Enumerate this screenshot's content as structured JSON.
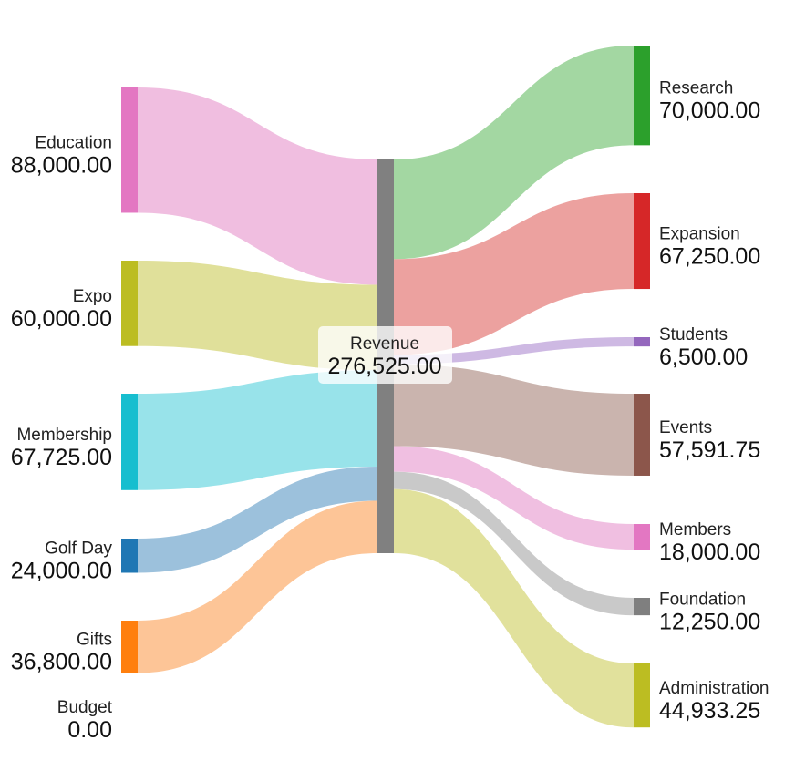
{
  "chart_data": {
    "type": "sankey",
    "value_format": "#,##0.00",
    "center": {
      "name": "Revenue",
      "value": 276525.0,
      "color": "#808080"
    },
    "sources": [
      {
        "name": "Education",
        "value": 88000.0,
        "color": "#e377c2",
        "link_color": "#f0bee0"
      },
      {
        "name": "Expo",
        "value": 60000.0,
        "color": "#bcbd22",
        "link_color": "#e0e09a"
      },
      {
        "name": "Membership",
        "value": 67725.0,
        "color": "#17becf",
        "link_color": "#98e3ea"
      },
      {
        "name": "Golf Day",
        "value": 24000.0,
        "color": "#1f77b4",
        "link_color": "#9cc1dc"
      },
      {
        "name": "Gifts",
        "value": 36800.0,
        "color": "#ff7f0e",
        "link_color": "#fdc597"
      },
      {
        "name": "Budget",
        "value": 0.0,
        "color": "#aaaaaa",
        "link_color": "#dddddd"
      }
    ],
    "targets": [
      {
        "name": "Research",
        "value": 70000.0,
        "color": "#2ca02c",
        "link_color": "#a1d6a0"
      },
      {
        "name": "Expansion",
        "value": 67250.0,
        "color": "#d62728",
        "link_color": "#ec9f9d"
      },
      {
        "name": "Students",
        "value": 6500.0,
        "color": "#9467bd",
        "link_color": "#cdb8e2"
      },
      {
        "name": "Events",
        "value": 57591.75,
        "color": "#8c564b",
        "link_color": "#c9b3ac"
      },
      {
        "name": "Members",
        "value": 18000.0,
        "color": "#e377c2",
        "link_color": "#f0bee0"
      },
      {
        "name": "Foundation",
        "value": 12250.0,
        "color": "#7f7f7f",
        "link_color": "#c8c8c8"
      },
      {
        "name": "Administration",
        "value": 44933.25,
        "color": "#bcbd22",
        "link_color": "#e0e09a"
      }
    ]
  }
}
